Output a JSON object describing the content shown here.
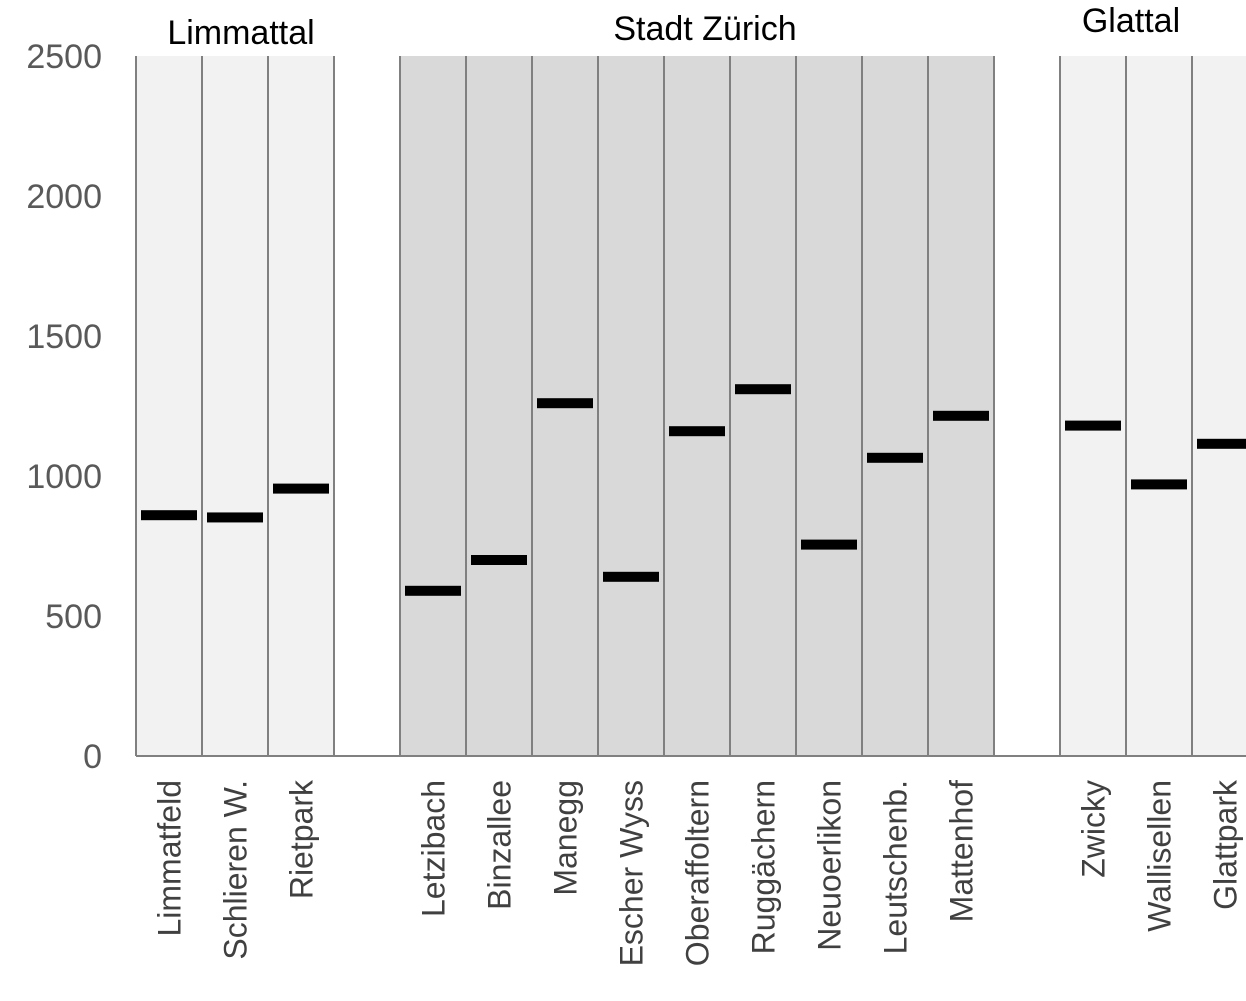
{
  "chart_data": {
    "type": "bar",
    "ylim": [
      0,
      2500
    ],
    "y_ticks": [
      0,
      500,
      1000,
      1500,
      2000,
      2500
    ],
    "grid": false,
    "groups": [
      {
        "name": "Limmattal",
        "categories": [
          "Limmatfeld",
          "Schlieren W.",
          "Rietpark"
        ],
        "values": [
          860,
          852,
          955
        ]
      },
      {
        "name": "Stadt Zürich",
        "categories": [
          "Letzibach",
          "Binzallee",
          "Manegg",
          "Escher Wyss",
          "Oberaffoltern",
          "Ruggächern",
          "Neuoerlikon",
          "Leutschenb.",
          "Mattenhof"
        ],
        "values": [
          590,
          700,
          1260,
          640,
          1160,
          1310,
          755,
          1065,
          1215
        ]
      },
      {
        "name": "Glattal",
        "categories": [
          "Zwicky",
          "Wallisellen",
          "Glattpark"
        ],
        "values": [
          1180,
          970,
          1115
        ]
      }
    ]
  },
  "colors": {
    "limmattal_band": "#f2f2f2",
    "stadt_band": "#d9d9d9",
    "glattal_band": "#f2f2f2",
    "divider": "#808080",
    "marker": "#000000",
    "axis_text": "#595959",
    "title_text": "#000000",
    "tick_label_text": "#404040"
  }
}
